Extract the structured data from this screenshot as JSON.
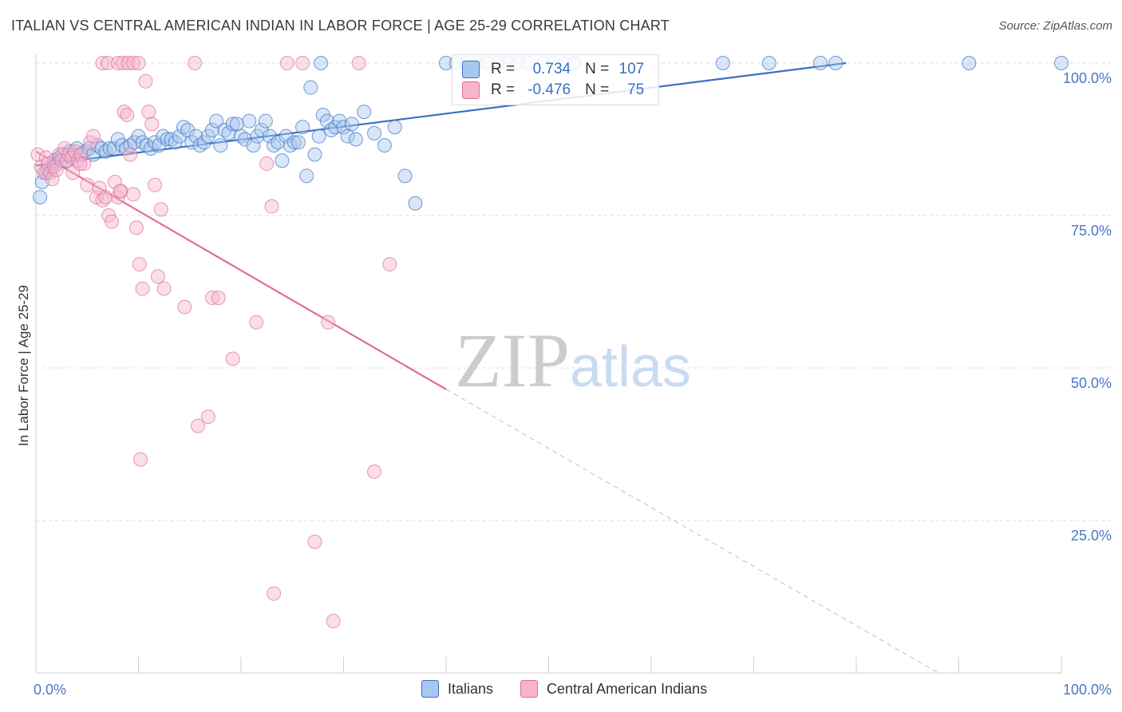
{
  "title": "ITALIAN VS CENTRAL AMERICAN INDIAN IN LABOR FORCE | AGE 25-29 CORRELATION CHART",
  "source": "Source: ZipAtlas.com",
  "colors": {
    "blue": "#3a70c4",
    "blue_fill": "#a9c7ee",
    "pink": "#e06e98",
    "pink_fill": "#f5b5cb",
    "grid": "#dddddd",
    "tick_text": "#4a77c6"
  },
  "legend": {
    "r_label": "R =",
    "n_label": "N =",
    "rows": [
      {
        "r": "0.734",
        "n": "107"
      },
      {
        "r": "-0.476",
        "n": "75"
      }
    ]
  },
  "chart_data": {
    "type": "scatter",
    "title": "ITALIAN VS CENTRAL AMERICAN INDIAN IN LABOR FORCE | AGE 25-29 CORRELATION CHART",
    "xlabel": "",
    "ylabel": "In Labor Force | Age 25-29",
    "xlim": [
      0,
      100
    ],
    "ylim": [
      0,
      100
    ],
    "x_tick_labels": [
      "0.0%",
      "100.0%"
    ],
    "y_tick_labels": [
      "25.0%",
      "50.0%",
      "75.0%",
      "100.0%"
    ],
    "y_ticks": [
      25,
      50,
      75,
      100
    ],
    "grid": true,
    "watermark": "ZIPatlas",
    "series": [
      {
        "name": "Italians",
        "color": "#3a70c4",
        "r": 0.734,
        "n": 107,
        "trend": {
          "x0": 0,
          "y0": 83.2,
          "x1": 79,
          "y1": 100
        },
        "points": [
          [
            0.4,
            78
          ],
          [
            0.6,
            80.5
          ],
          [
            1.0,
            82
          ],
          [
            1.2,
            82.5
          ],
          [
            1.5,
            83
          ],
          [
            1.8,
            84
          ],
          [
            2.0,
            83.5
          ],
          [
            2.3,
            84.5
          ],
          [
            2.6,
            85
          ],
          [
            3.0,
            84
          ],
          [
            3.3,
            85.5
          ],
          [
            3.6,
            85
          ],
          [
            4.0,
            86
          ],
          [
            4.4,
            85
          ],
          [
            4.8,
            85.5
          ],
          [
            5.2,
            86
          ],
          [
            5.6,
            85
          ],
          [
            6.0,
            86.5
          ],
          [
            6.4,
            86
          ],
          [
            6.8,
            85.5
          ],
          [
            7.2,
            86
          ],
          [
            7.6,
            86
          ],
          [
            8.0,
            87.5
          ],
          [
            8.4,
            86.5
          ],
          [
            8.8,
            86
          ],
          [
            9.2,
            86.5
          ],
          [
            9.6,
            87
          ],
          [
            10.0,
            88
          ],
          [
            10.4,
            87
          ],
          [
            10.8,
            86.5
          ],
          [
            11.2,
            86
          ],
          [
            11.6,
            87
          ],
          [
            12.0,
            86.5
          ],
          [
            12.4,
            88
          ],
          [
            12.8,
            87.5
          ],
          [
            13.2,
            87.5
          ],
          [
            13.6,
            87
          ],
          [
            14.0,
            88
          ],
          [
            14.4,
            89.5
          ],
          [
            14.8,
            89
          ],
          [
            15.2,
            87
          ],
          [
            15.6,
            88
          ],
          [
            16.0,
            86.5
          ],
          [
            16.4,
            87
          ],
          [
            16.8,
            88
          ],
          [
            17.2,
            89
          ],
          [
            17.6,
            90.5
          ],
          [
            18.0,
            86.5
          ],
          [
            18.4,
            89
          ],
          [
            18.8,
            88.5
          ],
          [
            19.2,
            90
          ],
          [
            19.6,
            90
          ],
          [
            20.0,
            88
          ],
          [
            20.4,
            87.5
          ],
          [
            20.8,
            90.5
          ],
          [
            21.2,
            86.5
          ],
          [
            21.6,
            88
          ],
          [
            22.0,
            89
          ],
          [
            22.4,
            90.5
          ],
          [
            22.8,
            88
          ],
          [
            23.2,
            86.5
          ],
          [
            23.6,
            87
          ],
          [
            24.0,
            84
          ],
          [
            24.4,
            88
          ],
          [
            24.8,
            86.5
          ],
          [
            25.2,
            87
          ],
          [
            25.6,
            87
          ],
          [
            26.0,
            89.5
          ],
          [
            26.4,
            81.5
          ],
          [
            26.8,
            96
          ],
          [
            27.2,
            85
          ],
          [
            27.6,
            88
          ],
          [
            28.0,
            91.5
          ],
          [
            28.4,
            90.5
          ],
          [
            28.8,
            89
          ],
          [
            29.2,
            89.5
          ],
          [
            29.6,
            90.5
          ],
          [
            30.0,
            89.5
          ],
          [
            30.4,
            88
          ],
          [
            30.8,
            90
          ],
          [
            31.2,
            87.5
          ],
          [
            32.0,
            92
          ],
          [
            33.0,
            88.5
          ],
          [
            34.0,
            86.5
          ],
          [
            35.0,
            89.5
          ],
          [
            36.0,
            81.5
          ],
          [
            37.0,
            77
          ],
          [
            27.8,
            100
          ],
          [
            40.0,
            100
          ],
          [
            41.0,
            100
          ],
          [
            42.0,
            100
          ],
          [
            43.0,
            100
          ],
          [
            44.0,
            100
          ],
          [
            45.0,
            100
          ],
          [
            46.0,
            100
          ],
          [
            47.0,
            100
          ],
          [
            48.0,
            100
          ],
          [
            49.5,
            100
          ],
          [
            50.5,
            100
          ],
          [
            51.5,
            100
          ],
          [
            52.5,
            100
          ],
          [
            67.0,
            100
          ],
          [
            71.5,
            100
          ],
          [
            76.5,
            100
          ],
          [
            78.0,
            100
          ],
          [
            91.0,
            100
          ],
          [
            100,
            100
          ]
        ]
      },
      {
        "name": "Central American Indians",
        "color": "#e06e98",
        "r": -0.476,
        "n": 75,
        "trend": {
          "x0": 0,
          "y0": 85.5,
          "x1": 40,
          "y1": 46.5,
          "dash_to_x": 88,
          "dash_to_y": 0
        },
        "points": [
          [
            0.2,
            85
          ],
          [
            0.5,
            83
          ],
          [
            0.8,
            82
          ],
          [
            1.0,
            84.5
          ],
          [
            1.2,
            83.5
          ],
          [
            1.4,
            82
          ],
          [
            1.6,
            81
          ],
          [
            1.8,
            83
          ],
          [
            2.0,
            82.5
          ],
          [
            2.3,
            85
          ],
          [
            2.5,
            84
          ],
          [
            2.8,
            86
          ],
          [
            3.0,
            84
          ],
          [
            3.2,
            85
          ],
          [
            3.5,
            84.5
          ],
          [
            3.8,
            85.5
          ],
          [
            4.1,
            84
          ],
          [
            4.4,
            85
          ],
          [
            4.7,
            83.5
          ],
          [
            5.0,
            80
          ],
          [
            5.3,
            87
          ],
          [
            5.6,
            88
          ],
          [
            5.9,
            78
          ],
          [
            6.2,
            79.5
          ],
          [
            6.5,
            77.5
          ],
          [
            6.8,
            78
          ],
          [
            7.1,
            75
          ],
          [
            7.4,
            74
          ],
          [
            7.7,
            80.5
          ],
          [
            8.0,
            78
          ],
          [
            8.3,
            79
          ],
          [
            8.6,
            92
          ],
          [
            8.9,
            91.5
          ],
          [
            9.2,
            85
          ],
          [
            9.5,
            78.5
          ],
          [
            9.8,
            73
          ],
          [
            10.1,
            67
          ],
          [
            10.4,
            63
          ],
          [
            10.7,
            97
          ],
          [
            11.0,
            92
          ],
          [
            11.3,
            90
          ],
          [
            11.6,
            80
          ],
          [
            11.9,
            65
          ],
          [
            12.2,
            76
          ],
          [
            12.5,
            63
          ],
          [
            6.5,
            100
          ],
          [
            7.0,
            100
          ],
          [
            8.0,
            100
          ],
          [
            8.5,
            100
          ],
          [
            9.0,
            100
          ],
          [
            9.5,
            100
          ],
          [
            10.0,
            100
          ],
          [
            15.5,
            100
          ],
          [
            31.5,
            100
          ],
          [
            14.5,
            60
          ],
          [
            17.2,
            61.5
          ],
          [
            17.8,
            61.5
          ],
          [
            19.2,
            51.5
          ],
          [
            15.8,
            40.5
          ],
          [
            16.8,
            42
          ],
          [
            10.2,
            35
          ],
          [
            22.5,
            83.5
          ],
          [
            23.0,
            76.5
          ],
          [
            28.5,
            57.5
          ],
          [
            34.5,
            67
          ],
          [
            21.5,
            57.5
          ],
          [
            33.0,
            33
          ],
          [
            27.2,
            21.5
          ],
          [
            23.2,
            13
          ],
          [
            29.0,
            8.5
          ],
          [
            26.0,
            100
          ],
          [
            24.5,
            100
          ],
          [
            8.2,
            79
          ],
          [
            3.6,
            82
          ],
          [
            4.3,
            83.5
          ]
        ]
      }
    ]
  }
}
